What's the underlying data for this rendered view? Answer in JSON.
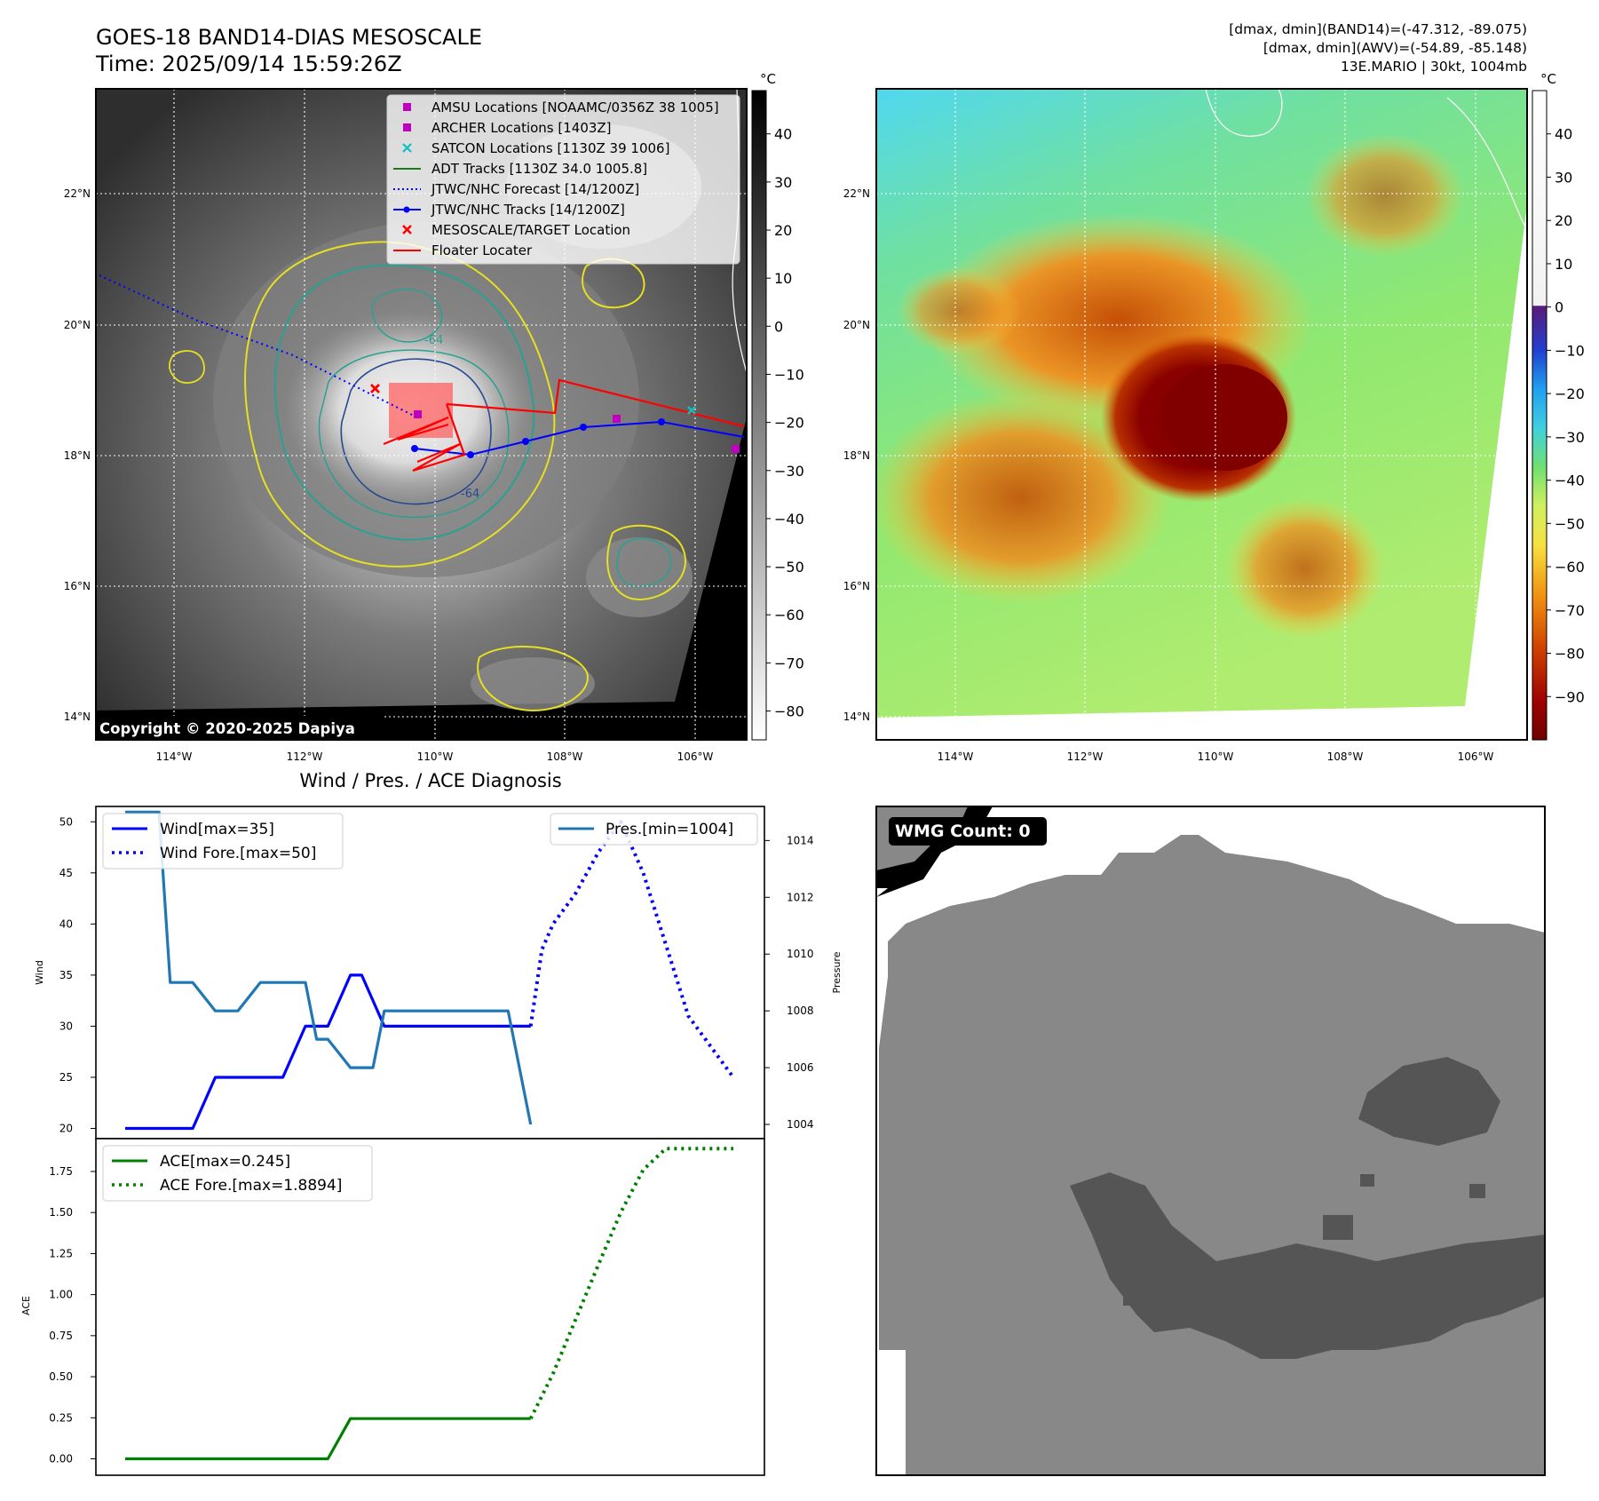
{
  "header": {
    "title_line1": "GOES-18 BAND14-DIAS MESOSCALE",
    "title_line2": "Time: 2025/09/14 15:59:26Z",
    "right_line1": "[dmax, dmin](BAND14)=(-47.312, -89.075)",
    "right_line2": "[dmax, dmin](AWV)=(-54.89, -85.148)",
    "right_line3": "13E.MARIO | 30kt, 1004mb"
  },
  "map_axes": {
    "lat_labels": [
      "22°N",
      "20°N",
      "18°N",
      "16°N",
      "14°N"
    ],
    "lon_labels": [
      "114°W",
      "112°W",
      "110°W",
      "108°W",
      "106°W"
    ]
  },
  "ir_panel": {
    "copyright": "Copyright © 2020-2025 Dapiya",
    "colorbar_unit": "°C",
    "colorbar_ticks": [
      "40",
      "30",
      "20",
      "10",
      "0",
      "−10",
      "−20",
      "−30",
      "−40",
      "−50",
      "−60",
      "−70",
      "−80"
    ],
    "contour_labels": [
      "-64",
      "-64"
    ],
    "legend": [
      {
        "label": "AMSU Locations [NOAAMC/0356Z 38 1005]",
        "marker": "square",
        "color": "#c000c0"
      },
      {
        "label": "ARCHER Locations [1403Z]",
        "marker": "square",
        "color": "#c000c0"
      },
      {
        "label": "SATCON Locations [1130Z 39 1006]",
        "marker": "x",
        "color": "#10c0c0"
      },
      {
        "label": "ADT Tracks [1130Z 34.0 1005.8]",
        "marker": "line",
        "color": "#1a7a1a"
      },
      {
        "label": "JTWC/NHC Forecast [14/1200Z]",
        "marker": "dotted",
        "color": "#0000ff"
      },
      {
        "label": "JTWC/NHC Tracks [14/1200Z]",
        "marker": "line-dot",
        "color": "#0000ff"
      },
      {
        "label": "MESOSCALE/TARGET Location",
        "marker": "x",
        "color": "#ff0000"
      },
      {
        "label": "Floater Locater",
        "marker": "line",
        "color": "#ff0000"
      }
    ]
  },
  "awv_panel": {
    "colorbar_unit": "°C",
    "colorbar_ticks": [
      "40",
      "30",
      "20",
      "10",
      "0",
      "−10",
      "−20",
      "−30",
      "−40",
      "−50",
      "−60",
      "−70",
      "−80",
      "−90"
    ]
  },
  "wmg_panel": {
    "count_label": "WMG Count: 0"
  },
  "chart_data": [
    {
      "type": "line",
      "title": "Wind / Pres. / ACE Diagnosis",
      "ylabel": "Wind",
      "y2label": "Pressure",
      "ylim": [
        19,
        51.5
      ],
      "y2lim": [
        1003.5,
        1015.2
      ],
      "yticks": [
        "50",
        "45",
        "40",
        "35",
        "30",
        "25",
        "20"
      ],
      "y2ticks": [
        "1014",
        "1012",
        "1010",
        "1008",
        "1006",
        "1004"
      ],
      "series": [
        {
          "name": "Wind[max=35]",
          "axis": "left",
          "style": "solid",
          "color": "#0000ff",
          "x": [
            0,
            2,
            3,
            4,
            6,
            7,
            8,
            9,
            10,
            10.5,
            11.5,
            12,
            13,
            14,
            15,
            16,
            17,
            18
          ],
          "values": [
            20,
            20,
            20,
            25,
            25,
            25,
            30,
            30,
            35,
            35,
            30,
            30,
            30,
            30,
            30,
            30,
            30,
            30
          ]
        },
        {
          "name": "Wind Fore.[max=50]",
          "axis": "left",
          "style": "dotted",
          "color": "#0000ff",
          "x": [
            18,
            18.5,
            19,
            20,
            21,
            22,
            23,
            24,
            25,
            26,
            27
          ],
          "values": [
            30,
            37.5,
            40,
            43,
            47,
            50,
            45,
            38,
            31,
            28,
            25
          ]
        },
        {
          "name": "Pres.[min=1004]",
          "axis": "right",
          "style": "solid",
          "color": "#1f77b4",
          "x": [
            0,
            1,
            1.5,
            2,
            3,
            4,
            5,
            6,
            7,
            8,
            8.5,
            9,
            10,
            11,
            11.5,
            12,
            13,
            14,
            15,
            16,
            17,
            18
          ],
          "values": [
            1015,
            1015,
            1015,
            1009,
            1009,
            1008,
            1008,
            1009,
            1009,
            1009,
            1007,
            1007,
            1006,
            1006,
            1008,
            1008,
            1008,
            1008,
            1008,
            1008,
            1008,
            1004
          ]
        }
      ]
    },
    {
      "type": "line",
      "ylabel": "ACE",
      "ylim": [
        -0.1,
        1.95
      ],
      "yticks": [
        "1.75",
        "1.50",
        "1.25",
        "1.00",
        "0.75",
        "0.50",
        "0.25",
        "0.00"
      ],
      "series": [
        {
          "name": "ACE[max=0.245]",
          "style": "solid",
          "color": "#008000",
          "x": [
            0,
            9,
            10,
            11,
            18
          ],
          "values": [
            0,
            0,
            0.245,
            0.245,
            0.245
          ]
        },
        {
          "name": "ACE Fore.[max=1.8894]",
          "style": "dotted",
          "color": "#008000",
          "x": [
            18,
            19,
            20,
            21,
            22,
            23,
            24,
            25,
            26,
            27
          ],
          "values": [
            0.245,
            0.52,
            0.85,
            1.18,
            1.5,
            1.76,
            1.8894,
            1.8894,
            1.8894,
            1.8894
          ]
        }
      ]
    }
  ]
}
